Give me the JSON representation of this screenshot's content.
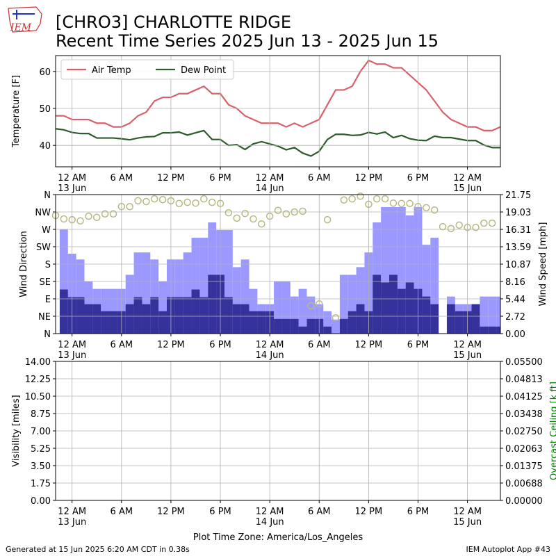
{
  "header": {
    "title": "[CHRO3] CHARLOTTE RIDGE",
    "subtitle": "Recent Time Series 2025 Jun 13 - 2025 Jun 15",
    "logo": "IEM"
  },
  "footer": {
    "timezone": "Plot Time Zone: America/Los_Angeles",
    "generated": "Generated at 15 Jun 2025 6:20 AM CDT in 0.38s",
    "app": "IEM Autoplot App #43"
  },
  "chart_data": [
    {
      "type": "line",
      "ylabel": "Temperature [F]",
      "grid": true,
      "legend": "upper left",
      "xlim": [
        "2025-06-12T22:00",
        "2025-06-15T04:00"
      ],
      "xticks": [
        {
          "value": "2025-06-13T00:00",
          "label": "12 AM\n13 Jun"
        },
        {
          "value": "2025-06-13T06:00",
          "label": "6 AM"
        },
        {
          "value": "2025-06-13T12:00",
          "label": "12 PM"
        },
        {
          "value": "2025-06-13T18:00",
          "label": "6 PM"
        },
        {
          "value": "2025-06-14T00:00",
          "label": "12 AM\n14 Jun"
        },
        {
          "value": "2025-06-14T06:00",
          "label": "6 AM"
        },
        {
          "value": "2025-06-14T12:00",
          "label": "12 PM"
        },
        {
          "value": "2025-06-14T18:00",
          "label": "6 PM"
        },
        {
          "value": "2025-06-15T00:00",
          "label": "12 AM\n15 Jun"
        }
      ],
      "ylim": [
        34.2,
        64.3
      ],
      "yticks": [
        40,
        50,
        60
      ],
      "x": [
        "2025-06-12T22:00",
        "2025-06-12T23:00",
        "2025-06-13T00:00",
        "2025-06-13T01:00",
        "2025-06-13T02:00",
        "2025-06-13T03:00",
        "2025-06-13T04:00",
        "2025-06-13T05:00",
        "2025-06-13T06:00",
        "2025-06-13T07:00",
        "2025-06-13T08:00",
        "2025-06-13T09:00",
        "2025-06-13T10:00",
        "2025-06-13T11:00",
        "2025-06-13T12:00",
        "2025-06-13T13:00",
        "2025-06-13T14:00",
        "2025-06-13T15:00",
        "2025-06-13T16:00",
        "2025-06-13T17:00",
        "2025-06-13T18:00",
        "2025-06-13T19:00",
        "2025-06-13T20:00",
        "2025-06-13T21:00",
        "2025-06-13T22:00",
        "2025-06-13T23:00",
        "2025-06-14T00:00",
        "2025-06-14T01:00",
        "2025-06-14T02:00",
        "2025-06-14T03:00",
        "2025-06-14T04:00",
        "2025-06-14T05:00",
        "2025-06-14T06:00",
        "2025-06-14T07:00",
        "2025-06-14T08:00",
        "2025-06-14T09:00",
        "2025-06-14T10:00",
        "2025-06-14T11:00",
        "2025-06-14T12:00",
        "2025-06-14T13:00",
        "2025-06-14T14:00",
        "2025-06-14T15:00",
        "2025-06-14T16:00",
        "2025-06-14T17:00",
        "2025-06-14T18:00",
        "2025-06-14T19:00",
        "2025-06-14T20:00",
        "2025-06-14T21:00",
        "2025-06-14T22:00",
        "2025-06-14T23:00",
        "2025-06-15T00:00",
        "2025-06-15T01:00",
        "2025-06-15T02:00",
        "2025-06-15T03:00",
        "2025-06-15T04:00"
      ],
      "series": [
        {
          "name": "Air Temp",
          "color": "#d9606a",
          "values": [
            48,
            48,
            47,
            47,
            47,
            46,
            46,
            45,
            45,
            46,
            48,
            49,
            52,
            53,
            53,
            54,
            54,
            55,
            56,
            54,
            54,
            51,
            50,
            48,
            47,
            46,
            46,
            46,
            45,
            46,
            45,
            46,
            47,
            51,
            55,
            55,
            56,
            60,
            63,
            62,
            62,
            61,
            61,
            59,
            57,
            55,
            52,
            49,
            47,
            46,
            45,
            45,
            44,
            44,
            45
          ]
        },
        {
          "name": "Dew Point",
          "color": "#2e5b2e",
          "values": [
            44.5,
            44.2,
            43.5,
            43.2,
            43.2,
            42,
            42,
            42,
            41.8,
            41.5,
            42,
            42.3,
            42.4,
            43.4,
            43.4,
            43.6,
            42.8,
            43.4,
            44,
            41.6,
            41.6,
            40,
            40.2,
            38.9,
            40.4,
            41,
            40.4,
            39.8,
            38.8,
            39.4,
            37.9,
            37.1,
            38.4,
            41.6,
            43,
            43,
            42.7,
            42.8,
            43.5,
            43.1,
            43.6,
            42.1,
            42.7,
            41.8,
            41.4,
            41.3,
            42.5,
            42.1,
            42.1,
            41.7,
            41.3,
            41.3,
            40.1,
            39.4,
            39.4
          ]
        }
      ]
    },
    {
      "type": "bar",
      "ylabel": "Wind Direction",
      "y2label": "Wind Speed [mph]",
      "grid": true,
      "xlim": [
        "2025-06-12T22:00",
        "2025-06-15T04:00"
      ],
      "xticks": [
        {
          "value": "2025-06-13T00:00",
          "label": "12 AM\n13 Jun"
        },
        {
          "value": "2025-06-13T06:00",
          "label": "6 AM"
        },
        {
          "value": "2025-06-13T12:00",
          "label": "12 PM"
        },
        {
          "value": "2025-06-13T18:00",
          "label": "6 PM"
        },
        {
          "value": "2025-06-14T00:00",
          "label": "12 AM\n14 Jun"
        },
        {
          "value": "2025-06-14T06:00",
          "label": "6 AM"
        },
        {
          "value": "2025-06-14T12:00",
          "label": "12 PM"
        },
        {
          "value": "2025-06-14T18:00",
          "label": "6 PM"
        },
        {
          "value": "2025-06-15T00:00",
          "label": "12 AM\n15 Jun"
        }
      ],
      "ylim": [
        0,
        360
      ],
      "yticks": [
        {
          "value": 0,
          "label": "N"
        },
        {
          "value": 45,
          "label": "NE"
        },
        {
          "value": 90,
          "label": "E"
        },
        {
          "value": 135,
          "label": "SE"
        },
        {
          "value": 180,
          "label": "S"
        },
        {
          "value": 225,
          "label": "SW"
        },
        {
          "value": 270,
          "label": "W"
        },
        {
          "value": 315,
          "label": "NW"
        },
        {
          "value": 360,
          "label": "N"
        }
      ],
      "y2lim": [
        0,
        21.75
      ],
      "y2ticks": [
        {
          "value": 0,
          "label": "0.00"
        },
        {
          "value": 2.72,
          "label": "2.72"
        },
        {
          "value": 5.44,
          "label": "5.44"
        },
        {
          "value": 8.16,
          "label": "8.16"
        },
        {
          "value": 10.87,
          "label": "10.87"
        },
        {
          "value": 13.59,
          "label": "13.59"
        },
        {
          "value": 16.31,
          "label": "16.31"
        },
        {
          "value": 19.03,
          "label": "19.03"
        },
        {
          "value": 21.75,
          "label": "21.75"
        }
      ],
      "x": [
        "2025-06-12T22:00",
        "2025-06-12T23:00",
        "2025-06-13T00:00",
        "2025-06-13T01:00",
        "2025-06-13T02:00",
        "2025-06-13T03:00",
        "2025-06-13T04:00",
        "2025-06-13T05:00",
        "2025-06-13T06:00",
        "2025-06-13T07:00",
        "2025-06-13T08:00",
        "2025-06-13T09:00",
        "2025-06-13T10:00",
        "2025-06-13T11:00",
        "2025-06-13T12:00",
        "2025-06-13T13:00",
        "2025-06-13T14:00",
        "2025-06-13T15:00",
        "2025-06-13T16:00",
        "2025-06-13T17:00",
        "2025-06-13T18:00",
        "2025-06-13T19:00",
        "2025-06-13T20:00",
        "2025-06-13T21:00",
        "2025-06-13T22:00",
        "2025-06-13T23:00",
        "2025-06-14T00:00",
        "2025-06-14T01:00",
        "2025-06-14T02:00",
        "2025-06-14T03:00",
        "2025-06-14T04:00",
        "2025-06-14T05:00",
        "2025-06-14T06:00",
        "2025-06-14T07:00",
        "2025-06-14T08:00",
        "2025-06-14T09:00",
        "2025-06-14T10:00",
        "2025-06-14T11:00",
        "2025-06-14T12:00",
        "2025-06-14T13:00",
        "2025-06-14T14:00",
        "2025-06-14T15:00",
        "2025-06-14T16:00",
        "2025-06-14T17:00",
        "2025-06-14T18:00",
        "2025-06-14T19:00",
        "2025-06-14T20:00",
        "2025-06-14T21:00",
        "2025-06-14T22:00",
        "2025-06-14T23:00",
        "2025-06-15T00:00",
        "2025-06-15T01:00",
        "2025-06-15T02:00",
        "2025-06-15T03:00",
        "2025-06-15T04:00"
      ],
      "series": [
        {
          "type": "bar",
          "axis": "y2",
          "color": "#9b99ff",
          "x": [
            "2025-06-12T23:00",
            "2025-06-13T00:00",
            "2025-06-13T01:00",
            "2025-06-13T02:00",
            "2025-06-13T03:00",
            "2025-06-13T04:00",
            "2025-06-13T05:00",
            "2025-06-13T06:00",
            "2025-06-13T07:00",
            "2025-06-13T08:00",
            "2025-06-13T09:00",
            "2025-06-13T10:00",
            "2025-06-13T11:00",
            "2025-06-13T12:00",
            "2025-06-13T13:00",
            "2025-06-13T14:00",
            "2025-06-13T15:00",
            "2025-06-13T16:00",
            "2025-06-13T17:00",
            "2025-06-13T18:00",
            "2025-06-13T19:00",
            "2025-06-13T20:00",
            "2025-06-13T21:00",
            "2025-06-13T22:00",
            "2025-06-13T23:00",
            "2025-06-14T00:00",
            "2025-06-14T01:00",
            "2025-06-14T02:00",
            "2025-06-14T03:00",
            "2025-06-14T04:00",
            "2025-06-14T05:00",
            "2025-06-14T06:00",
            "2025-06-14T07:00",
            "2025-06-14T08:00",
            "2025-06-14T09:00",
            "2025-06-14T10:00",
            "2025-06-14T11:00",
            "2025-06-14T12:00",
            "2025-06-14T13:00",
            "2025-06-14T14:00",
            "2025-06-14T15:00",
            "2025-06-14T16:00",
            "2025-06-14T17:00",
            "2025-06-14T18:00",
            "2025-06-14T19:00",
            "2025-06-14T20:00",
            "2025-06-14T21:00",
            "2025-06-14T22:00",
            "2025-06-14T23:00",
            "2025-06-15T00:00",
            "2025-06-15T01:00",
            "2025-06-15T02:00",
            "2025-06-15T03:00",
            "2025-06-15T04:00"
          ],
          "values": [
            16.3,
            12.5,
            11.6,
            8.2,
            7.0,
            7.0,
            7.0,
            7.0,
            9.2,
            12.7,
            12.7,
            11.6,
            8.2,
            11.6,
            11.6,
            12.7,
            15.0,
            15.0,
            17.4,
            16.2,
            16.2,
            10.4,
            11.6,
            7.0,
            4.6,
            4.6,
            8.2,
            8.2,
            5.8,
            7.0,
            5.8,
            4.6,
            3.5,
            2.2,
            9.2,
            9.2,
            10.4,
            12.7,
            17.4,
            19.8,
            19.8,
            19.8,
            18.5,
            19.8,
            13.9,
            15.0,
            null,
            5.8,
            4.6,
            4.6,
            4.6,
            5.8,
            5.8,
            5.8
          ]
        },
        {
          "type": "bar",
          "axis": "y2",
          "color": "#35339b",
          "x": [
            "2025-06-12T23:00",
            "2025-06-13T00:00",
            "2025-06-13T01:00",
            "2025-06-13T02:00",
            "2025-06-13T03:00",
            "2025-06-13T04:00",
            "2025-06-13T05:00",
            "2025-06-13T06:00",
            "2025-06-13T07:00",
            "2025-06-13T08:00",
            "2025-06-13T09:00",
            "2025-06-13T10:00",
            "2025-06-13T11:00",
            "2025-06-13T12:00",
            "2025-06-13T13:00",
            "2025-06-13T14:00",
            "2025-06-13T15:00",
            "2025-06-13T16:00",
            "2025-06-13T17:00",
            "2025-06-13T18:00",
            "2025-06-13T19:00",
            "2025-06-13T20:00",
            "2025-06-13T21:00",
            "2025-06-13T22:00",
            "2025-06-13T23:00",
            "2025-06-14T00:00",
            "2025-06-14T01:00",
            "2025-06-14T02:00",
            "2025-06-14T03:00",
            "2025-06-14T04:00",
            "2025-06-14T05:00",
            "2025-06-14T06:00",
            "2025-06-14T07:00",
            "2025-06-14T08:00",
            "2025-06-14T09:00",
            "2025-06-14T10:00",
            "2025-06-14T11:00",
            "2025-06-14T12:00",
            "2025-06-14T13:00",
            "2025-06-14T14:00",
            "2025-06-14T15:00",
            "2025-06-14T16:00",
            "2025-06-14T17:00",
            "2025-06-14T18:00",
            "2025-06-14T19:00",
            "2025-06-14T20:00",
            "2025-06-14T21:00",
            "2025-06-14T22:00",
            "2025-06-14T23:00",
            "2025-06-15T00:00",
            "2025-06-15T01:00",
            "2025-06-15T02:00",
            "2025-06-15T03:00",
            "2025-06-15T04:00"
          ],
          "values": [
            6.9,
            5.7,
            5.7,
            4.6,
            4.6,
            3.5,
            3.5,
            3.5,
            4.6,
            5.7,
            4.6,
            5.7,
            3.5,
            5.7,
            5.7,
            5.7,
            6.9,
            5.7,
            9.2,
            9.2,
            5.7,
            4.6,
            4.6,
            3.5,
            3.5,
            3.5,
            2.3,
            2.3,
            2.3,
            1.1,
            2.3,
            2.3,
            1.1,
            0,
            2.3,
            3.5,
            4.6,
            3.5,
            9.2,
            8.0,
            9.2,
            7.0,
            8.0,
            7.0,
            5.8,
            4.6,
            null,
            4.6,
            3.5,
            3.5,
            4.6,
            1.1,
            1.1,
            1.1
          ]
        },
        {
          "type": "scatter",
          "color": "#b8b881",
          "values": [
            306,
            297,
            295,
            292,
            304,
            301,
            310,
            310,
            329,
            329,
            344,
            342,
            349,
            347,
            344,
            337,
            340,
            338,
            349,
            340,
            337,
            313,
            299,
            311,
            297,
            284,
            304,
            319,
            310,
            315,
            317,
            72,
            77,
            295,
            41,
            346,
            349,
            356,
            335,
            349,
            349,
            338,
            337,
            337,
            329,
            326,
            320,
            277,
            272,
            281,
            275,
            275,
            286,
            286,
            null
          ]
        }
      ]
    },
    {
      "type": "line",
      "ylabel": "Visibility [miles]",
      "y2label": "Overcast Ceiling [k ft]",
      "y2color": "#008000",
      "grid": true,
      "xlim": [
        "2025-06-12T22:00",
        "2025-06-15T04:00"
      ],
      "xticks": [
        {
          "value": "2025-06-13T00:00",
          "label": "12 AM\n13 Jun"
        },
        {
          "value": "2025-06-13T06:00",
          "label": "6 AM"
        },
        {
          "value": "2025-06-13T12:00",
          "label": "12 PM"
        },
        {
          "value": "2025-06-13T18:00",
          "label": "6 PM"
        },
        {
          "value": "2025-06-14T00:00",
          "label": "12 AM\n14 Jun"
        },
        {
          "value": "2025-06-14T06:00",
          "label": "6 AM"
        },
        {
          "value": "2025-06-14T12:00",
          "label": "12 PM"
        },
        {
          "value": "2025-06-14T18:00",
          "label": "6 PM"
        },
        {
          "value": "2025-06-15T00:00",
          "label": "12 AM\n15 Jun"
        }
      ],
      "ylim": [
        0,
        14
      ],
      "yticks": [
        {
          "value": 0,
          "label": "0.00"
        },
        {
          "value": 1.75,
          "label": "1.75"
        },
        {
          "value": 3.5,
          "label": "3.50"
        },
        {
          "value": 5.25,
          "label": "5.25"
        },
        {
          "value": 7,
          "label": "7.00"
        },
        {
          "value": 8.75,
          "label": "8.75"
        },
        {
          "value": 10.5,
          "label": "10.50"
        },
        {
          "value": 12.25,
          "label": "12.25"
        },
        {
          "value": 14,
          "label": "14.00"
        }
      ],
      "y2lim": [
        0,
        0.055
      ],
      "y2ticks": [
        {
          "value": 0,
          "label": "0.00000"
        },
        {
          "value": 0.006875,
          "label": "0.00688"
        },
        {
          "value": 0.01375,
          "label": "0.01375"
        },
        {
          "value": 0.020625,
          "label": "0.02063"
        },
        {
          "value": 0.0275,
          "label": "0.02750"
        },
        {
          "value": 0.034375,
          "label": "0.03438"
        },
        {
          "value": 0.04125,
          "label": "0.04125"
        },
        {
          "value": 0.048125,
          "label": "0.04813"
        },
        {
          "value": 0.055,
          "label": "0.05500"
        }
      ],
      "series": []
    }
  ]
}
